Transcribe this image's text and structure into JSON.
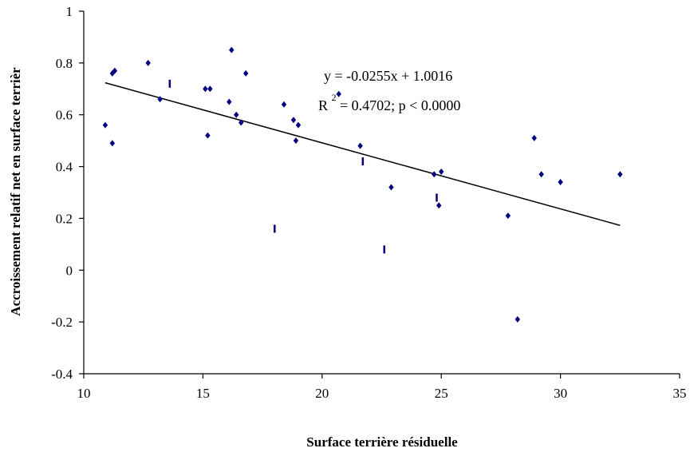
{
  "chart_data": {
    "type": "scatter",
    "title": "",
    "xlabel": "Surface terrière résiduelle",
    "ylabel": "Accroissement relatif net en surface terrièr",
    "xlim": [
      10,
      35
    ],
    "ylim": [
      -0.4,
      1
    ],
    "xticks": [
      "10",
      "15",
      "20",
      "25",
      "30",
      "35"
    ],
    "yticks": [
      "-0.4",
      "-0.2",
      "0",
      "0.2",
      "0.4",
      "0.6",
      "0.8",
      "1"
    ],
    "grid": false,
    "legend": "none",
    "marker_color": "#000080",
    "line_color": "#000000",
    "annotation": {
      "equation": "y = -0.0255x + 1.0016",
      "r2_prefix": "R",
      "r2_exponent": "2",
      "r2_rest": " = 0.4702; p < 0.0000"
    },
    "trendline": {
      "slope": -0.0255,
      "intercept": 1.0016,
      "x_start": 10.9,
      "x_end": 32.5
    },
    "points": [
      {
        "x": 10.9,
        "y": 0.56,
        "marker": "diamond"
      },
      {
        "x": 11.2,
        "y": 0.49,
        "marker": "diamond"
      },
      {
        "x": 11.2,
        "y": 0.76,
        "marker": "diamond"
      },
      {
        "x": 11.3,
        "y": 0.77,
        "marker": "diamond"
      },
      {
        "x": 12.7,
        "y": 0.8,
        "marker": "diamond"
      },
      {
        "x": 13.2,
        "y": 0.66,
        "marker": "diamond"
      },
      {
        "x": 13.6,
        "y": 0.72,
        "marker": "dash"
      },
      {
        "x": 15.1,
        "y": 0.7,
        "marker": "diamond"
      },
      {
        "x": 15.3,
        "y": 0.7,
        "marker": "diamond"
      },
      {
        "x": 15.2,
        "y": 0.52,
        "marker": "diamond"
      },
      {
        "x": 16.1,
        "y": 0.65,
        "marker": "diamond"
      },
      {
        "x": 16.2,
        "y": 0.85,
        "marker": "diamond"
      },
      {
        "x": 16.4,
        "y": 0.6,
        "marker": "diamond"
      },
      {
        "x": 16.6,
        "y": 0.57,
        "marker": "diamond"
      },
      {
        "x": 16.8,
        "y": 0.76,
        "marker": "diamond"
      },
      {
        "x": 18.0,
        "y": 0.16,
        "marker": "dash"
      },
      {
        "x": 18.4,
        "y": 0.64,
        "marker": "diamond"
      },
      {
        "x": 18.8,
        "y": 0.58,
        "marker": "diamond"
      },
      {
        "x": 18.9,
        "y": 0.5,
        "marker": "diamond"
      },
      {
        "x": 19.0,
        "y": 0.56,
        "marker": "diamond"
      },
      {
        "x": 20.7,
        "y": 0.68,
        "marker": "diamond"
      },
      {
        "x": 21.6,
        "y": 0.48,
        "marker": "diamond"
      },
      {
        "x": 21.7,
        "y": 0.42,
        "marker": "dash"
      },
      {
        "x": 22.6,
        "y": 0.08,
        "marker": "dash"
      },
      {
        "x": 22.9,
        "y": 0.32,
        "marker": "diamond"
      },
      {
        "x": 24.7,
        "y": 0.37,
        "marker": "diamond"
      },
      {
        "x": 24.8,
        "y": 0.28,
        "marker": "dash"
      },
      {
        "x": 24.9,
        "y": 0.25,
        "marker": "diamond"
      },
      {
        "x": 25.0,
        "y": 0.38,
        "marker": "diamond"
      },
      {
        "x": 27.8,
        "y": 0.21,
        "marker": "diamond"
      },
      {
        "x": 28.2,
        "y": -0.19,
        "marker": "diamond"
      },
      {
        "x": 28.9,
        "y": 0.51,
        "marker": "diamond"
      },
      {
        "x": 29.2,
        "y": 0.37,
        "marker": "diamond"
      },
      {
        "x": 30.0,
        "y": 0.34,
        "marker": "diamond"
      },
      {
        "x": 32.5,
        "y": 0.37,
        "marker": "diamond"
      }
    ]
  }
}
